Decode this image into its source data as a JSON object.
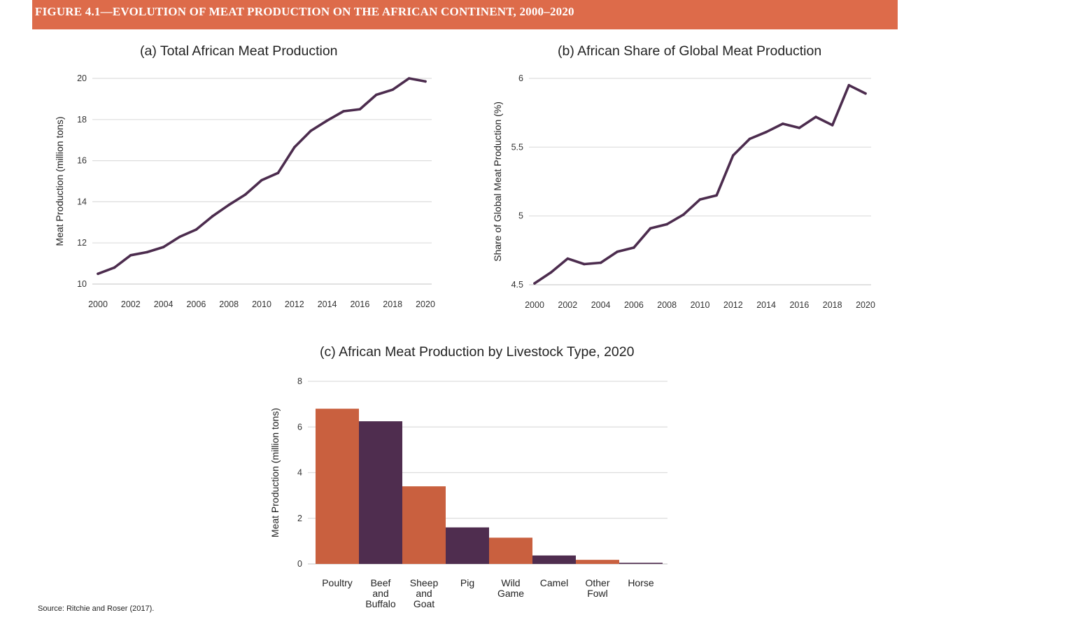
{
  "header": {
    "title": "FIGURE 4.1—EVOLUTION OF MEAT PRODUCTION ON THE AFRICAN CONTINENT, 2000–2020"
  },
  "footer": {
    "source": "Source: Ritchie and Roser (2017)."
  },
  "colors": {
    "banner": "#dd6b4a",
    "line": "#4c2c4e",
    "bar_orange": "#c9603f",
    "bar_purple": "#4f2d4f",
    "grid": "#dddddd"
  },
  "chart_data": [
    {
      "id": "a",
      "type": "line",
      "title": "(a) Total African Meat Production",
      "xlabel": "",
      "ylabel": "Meat Production (million tons)",
      "x": [
        2000,
        2001,
        2002,
        2003,
        2004,
        2005,
        2006,
        2007,
        2008,
        2009,
        2010,
        2011,
        2012,
        2013,
        2014,
        2015,
        2016,
        2017,
        2018,
        2019,
        2020
      ],
      "values": [
        10.5,
        10.8,
        11.4,
        11.55,
        11.8,
        12.3,
        12.65,
        13.3,
        13.85,
        14.35,
        15.05,
        15.4,
        16.65,
        17.45,
        17.95,
        18.4,
        18.5,
        19.2,
        19.45,
        20.0,
        19.85
      ],
      "xticks": [
        "2000",
        "2002",
        "2004",
        "2006",
        "2008",
        "2010",
        "2012",
        "2014",
        "2016",
        "2018",
        "2020"
      ],
      "yticks": [
        "10",
        "12",
        "14",
        "16",
        "18",
        "20"
      ],
      "ylim": [
        10,
        20
      ],
      "grid": true
    },
    {
      "id": "b",
      "type": "line",
      "title": "(b) African Share of Global Meat Production",
      "xlabel": "",
      "ylabel": "Share of Global Meat Production (%)",
      "x": [
        2000,
        2001,
        2002,
        2003,
        2004,
        2005,
        2006,
        2007,
        2008,
        2009,
        2010,
        2011,
        2012,
        2013,
        2014,
        2015,
        2016,
        2017,
        2018,
        2019,
        2020
      ],
      "values": [
        4.51,
        4.59,
        4.69,
        4.65,
        4.66,
        4.74,
        4.77,
        4.91,
        4.94,
        5.01,
        5.12,
        5.15,
        5.44,
        5.56,
        5.61,
        5.67,
        5.64,
        5.72,
        5.66,
        5.95,
        5.89
      ],
      "xticks": [
        "2000",
        "2002",
        "2004",
        "2006",
        "2008",
        "2010",
        "2012",
        "2014",
        "2016",
        "2018",
        "2020"
      ],
      "yticks": [
        "4.5",
        "5",
        "5.5",
        "6"
      ],
      "ylim": [
        4.5,
        6
      ],
      "grid": true
    },
    {
      "id": "c",
      "type": "bar",
      "title": "(c) African Meat Production by Livestock Type, 2020",
      "xlabel": "",
      "ylabel": "Meat Production (million tons)",
      "categories": [
        "Poultry",
        "Beef and Buffalo",
        "Sheep and Goat",
        "Pig",
        "Wild Game",
        "Camel",
        "Other Fowl",
        "Horse"
      ],
      "category_lines": [
        [
          "Poultry"
        ],
        [
          "Beef",
          "and",
          "Buffalo"
        ],
        [
          "Sheep",
          "and",
          "Goat"
        ],
        [
          "Pig"
        ],
        [
          "Wild",
          "Game"
        ],
        [
          "Camel"
        ],
        [
          "Other",
          "Fowl"
        ],
        [
          "Horse"
        ]
      ],
      "values": [
        6.8,
        6.25,
        3.4,
        1.6,
        1.15,
        0.37,
        0.18,
        0.05
      ],
      "bar_colors": [
        "#c9603f",
        "#4f2d4f",
        "#c9603f",
        "#4f2d4f",
        "#c9603f",
        "#4f2d4f",
        "#c9603f",
        "#4f2d4f"
      ],
      "yticks": [
        "0",
        "2",
        "4",
        "6",
        "8"
      ],
      "ylim": [
        0,
        8
      ],
      "grid": true
    }
  ]
}
